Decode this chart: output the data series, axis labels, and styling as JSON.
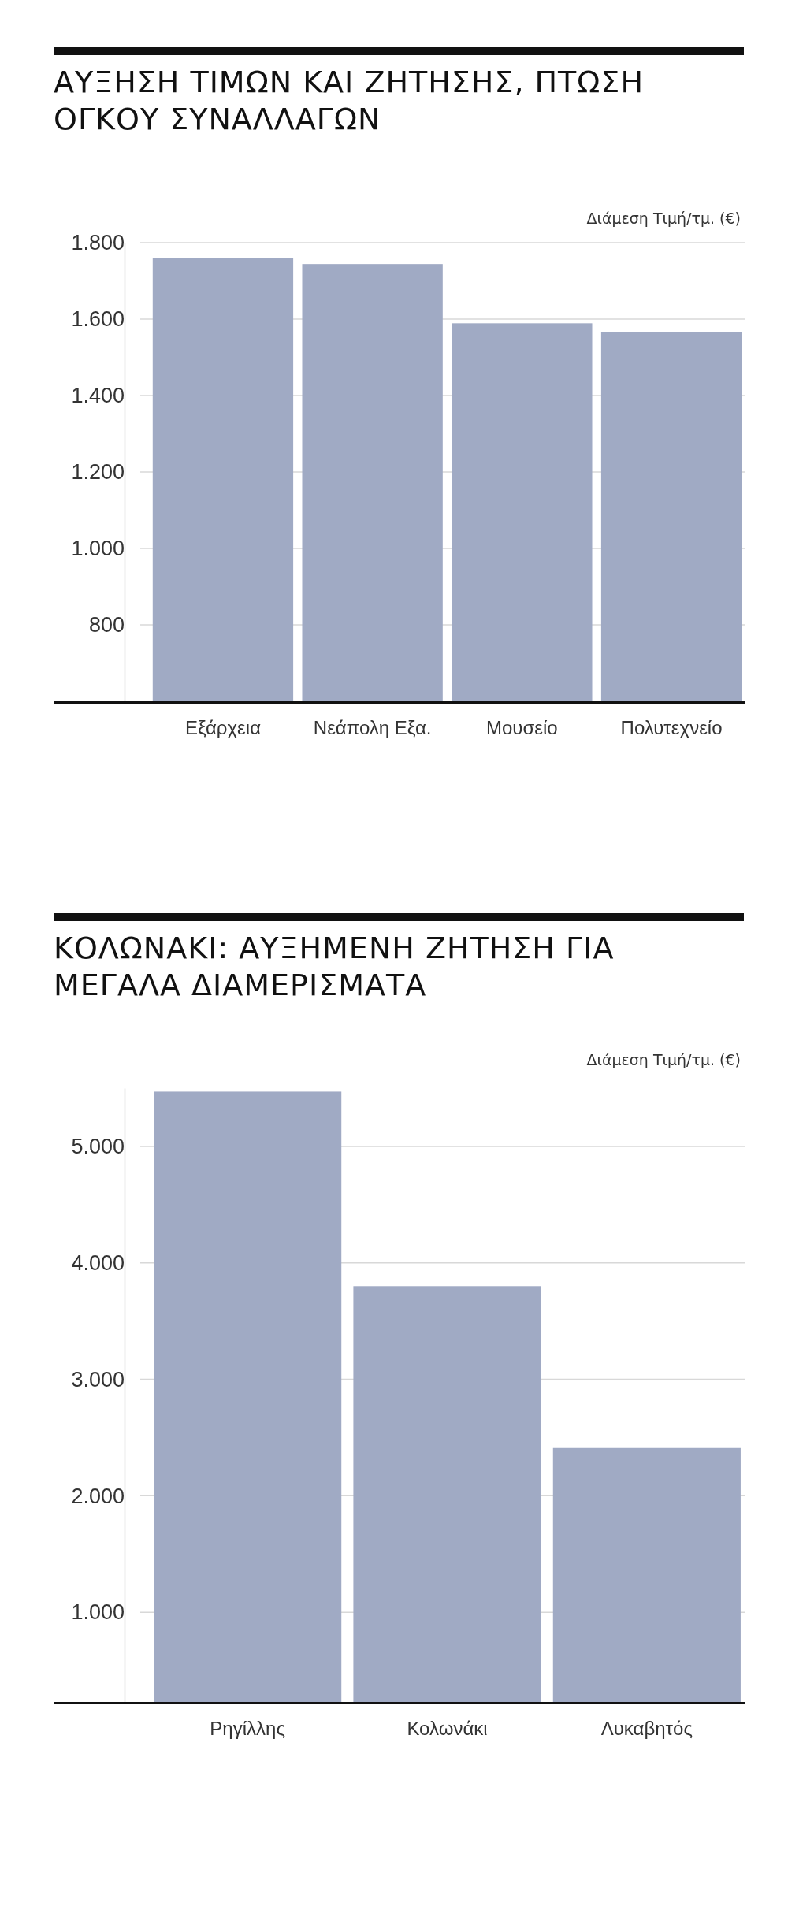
{
  "chart_data": [
    {
      "type": "bar",
      "title": "ΑΥΞΗΣΗ ΤΙΜΩΝ ΚΑΙ ΖΗΤΗΣΗΣ, ΠΤΩΣΗ ΟΓΚΟΥ ΣΥΝΑΛΛΑΓΩΝ",
      "ylabel": "Διάμεση Τιμή/τμ. (€)",
      "categories": [
        "Εξάρχεια",
        "Νεάπολη Εξα.",
        "Μουσείο",
        "Πολυτεχνείο"
      ],
      "values": [
        1760,
        1744,
        1589,
        1567
      ],
      "color": "#a0aac4",
      "ylim": [
        600,
        1800
      ],
      "yticks": [
        {
          "value": 800,
          "label": "800"
        },
        {
          "value": 1000,
          "label": "1.000"
        },
        {
          "value": 1200,
          "label": "1.200"
        },
        {
          "value": 1400,
          "label": "1.400"
        },
        {
          "value": 1600,
          "label": "1.600"
        },
        {
          "value": 1800,
          "label": "1.800"
        }
      ],
      "grid": "y"
    },
    {
      "type": "bar",
      "title": "ΚΟΛΩΝΑΚΙ: ΑΥΞΗΜΕΝΗ ΖΗΤΗΣΗ ΓΙΑ ΜΕΓΑΛΑ ΔΙΑΜΕΡΙΣΜΑΤΑ",
      "ylabel": "Διάμεση Τιμή/τμ. (€)",
      "categories": [
        "Ρηγίλλης",
        "Κολωνάκι",
        "Λυκαβητός"
      ],
      "values": [
        5470,
        3800,
        2410
      ],
      "color": "#a0aac4",
      "ylim": [
        230,
        5500
      ],
      "yticks": [
        {
          "value": 1000,
          "label": "1.000"
        },
        {
          "value": 2000,
          "label": "2.000"
        },
        {
          "value": 3000,
          "label": "3.000"
        },
        {
          "value": 4000,
          "label": "4.000"
        },
        {
          "value": 5000,
          "label": "5.000"
        }
      ],
      "grid": "y"
    }
  ]
}
